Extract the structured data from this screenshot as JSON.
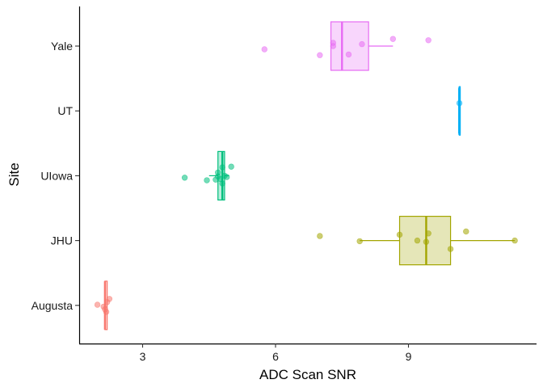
{
  "chart_data": {
    "type": "boxplot",
    "orientation": "horizontal",
    "title": "",
    "xlabel": "ADC Scan SNR",
    "ylabel": "Site",
    "xlim": [
      1.5,
      11.8
    ],
    "xticks": [
      3,
      6,
      9
    ],
    "categories": [
      "Augusta",
      "JHU",
      "UIowa",
      "UT",
      "Yale"
    ],
    "grid": false,
    "legend": "none",
    "series": [
      {
        "category": "Augusta",
        "color": "#F8766D",
        "box": {
          "min": 2.15,
          "q1": 2.15,
          "median": 2.15,
          "q3": 2.2,
          "max": 2.2
        },
        "points": [
          [
            1.98,
            -0.01
          ],
          [
            2.18,
            0.1
          ],
          [
            2.25,
            -0.1
          ],
          [
            2.12,
            0.02
          ],
          [
            2.2,
            -0.05
          ],
          [
            2.15,
            0.06
          ]
        ]
      },
      {
        "category": "JHU",
        "color": "#A3A500",
        "box": {
          "min": 7.9,
          "q1": 8.8,
          "median": 9.4,
          "q3": 9.95,
          "max": 11.4
        },
        "points": [
          [
            7.0,
            -0.07
          ],
          [
            7.9,
            0.01
          ],
          [
            8.8,
            -0.09
          ],
          [
            9.2,
            0.0
          ],
          [
            9.4,
            0.02
          ],
          [
            9.45,
            -0.11
          ],
          [
            9.95,
            0.13
          ],
          [
            10.3,
            -0.14
          ],
          [
            11.4,
            0.0
          ]
        ]
      },
      {
        "category": "UIowa",
        "color": "#00BF7D",
        "box": {
          "min": 4.5,
          "q1": 4.7,
          "median": 4.8,
          "q3": 4.85,
          "max": 4.95
        },
        "points": [
          [
            3.95,
            0.03
          ],
          [
            4.45,
            0.07
          ],
          [
            4.65,
            0.06
          ],
          [
            4.7,
            0.01
          ],
          [
            4.75,
            0.05
          ],
          [
            4.8,
            0.12
          ],
          [
            4.85,
            0.0
          ],
          [
            4.9,
            0.02
          ],
          [
            4.8,
            -0.13
          ],
          [
            5.0,
            -0.14
          ],
          [
            4.7,
            -0.05
          ]
        ]
      },
      {
        "category": "UT",
        "color": "#00B0F6",
        "box": {
          "min": 10.15,
          "q1": 10.15,
          "median": 10.15,
          "q3": 10.15,
          "max": 10.15,
          "whisker_span": [
            -0.35,
            0.35
          ]
        },
        "points": [
          [
            10.15,
            -0.12
          ]
        ]
      },
      {
        "category": "Yale",
        "color": "#E76BF3",
        "box": {
          "min": 7.25,
          "q1": 7.25,
          "median": 7.5,
          "q3": 8.1,
          "max": 8.65
        },
        "points": [
          [
            5.75,
            0.05
          ],
          [
            7.0,
            0.14
          ],
          [
            7.3,
            0.0
          ],
          [
            7.3,
            -0.05
          ],
          [
            7.65,
            0.13
          ],
          [
            7.95,
            -0.03
          ],
          [
            8.65,
            -0.11
          ],
          [
            9.45,
            -0.09
          ]
        ]
      }
    ]
  }
}
